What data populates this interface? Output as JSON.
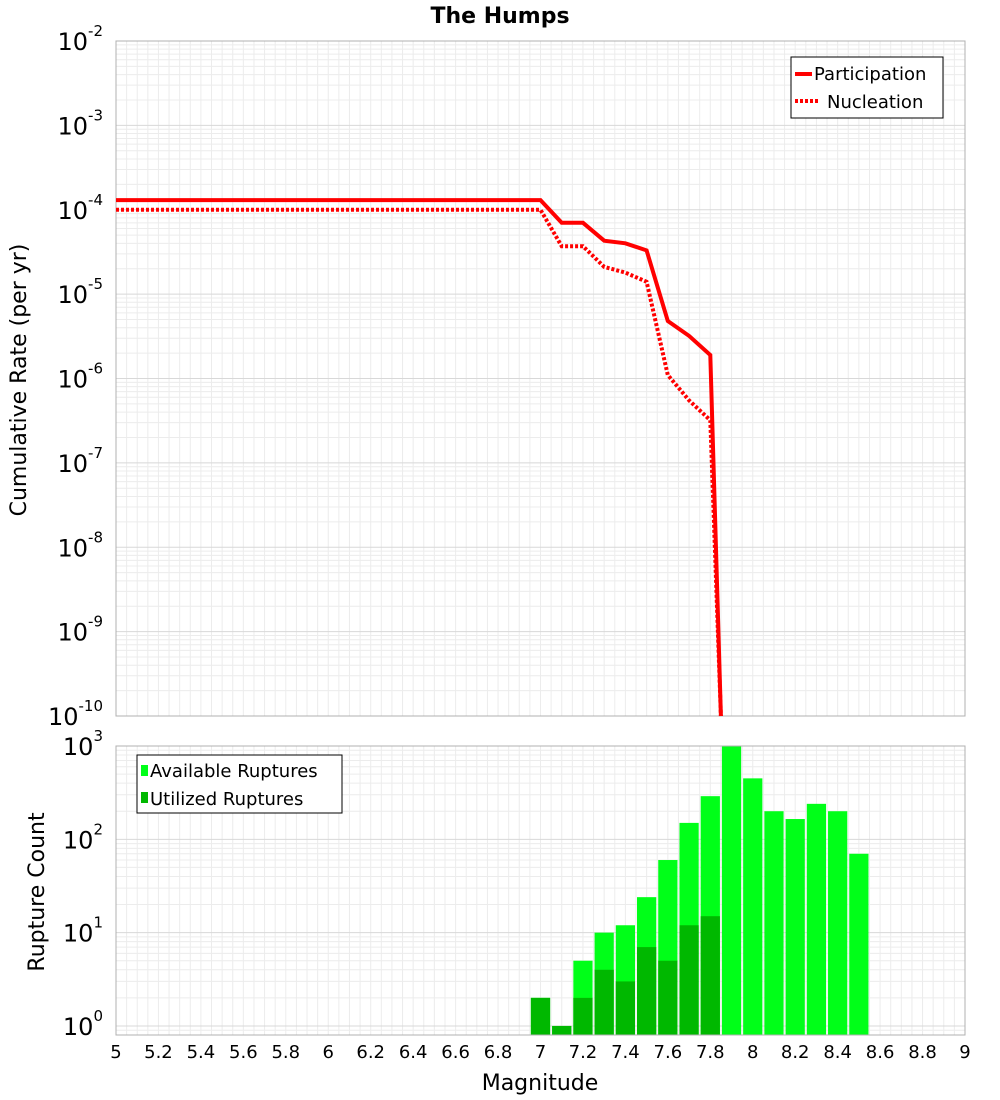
{
  "chart_data": [
    {
      "type": "line",
      "title": "The Humps",
      "xlabel": "",
      "ylabel": "Cumulative Rate (per yr)",
      "xlim": [
        5,
        9
      ],
      "ylim": [
        1e-10,
        0.01
      ],
      "y_scale": "log",
      "y_ticks_exp": [
        -10,
        -9,
        -8,
        -7,
        -6,
        -5,
        -4,
        -3,
        -2
      ],
      "grid": true,
      "legend_position": "top-right",
      "series": [
        {
          "name": "Participation",
          "color": "#ff0000",
          "style": "solid",
          "points": [
            [
              5.0,
              0.00013
            ],
            [
              7.0,
              0.00013
            ],
            [
              7.1,
              7e-05
            ],
            [
              7.2,
              7e-05
            ],
            [
              7.3,
              4.3e-05
            ],
            [
              7.4,
              4e-05
            ],
            [
              7.5,
              3.3e-05
            ],
            [
              7.6,
              4.8e-06
            ],
            [
              7.7,
              3.2e-06
            ],
            [
              7.8,
              1.9e-06
            ],
            [
              7.85,
              1e-10
            ]
          ]
        },
        {
          "name": "Nucleation",
          "color": "#ff0000",
          "style": "dotted",
          "points": [
            [
              5.0,
              0.0001
            ],
            [
              7.0,
              0.0001
            ],
            [
              7.1,
              3.7e-05
            ],
            [
              7.2,
              3.7e-05
            ],
            [
              7.3,
              2.1e-05
            ],
            [
              7.4,
              1.8e-05
            ],
            [
              7.5,
              1.4e-05
            ],
            [
              7.6,
              1.1e-06
            ],
            [
              7.7,
              5.5e-07
            ],
            [
              7.8,
              3.2e-07
            ],
            [
              7.85,
              1e-10
            ]
          ]
        }
      ]
    },
    {
      "type": "bar",
      "title": "",
      "xlabel": "Magnitude",
      "ylabel": "Rupture Count",
      "xlim": [
        5,
        9
      ],
      "ylim": [
        0.8,
        1000
      ],
      "y_scale": "log",
      "y_ticks_exp": [
        0,
        1,
        2,
        3
      ],
      "x_ticks": [
        "5",
        "5.2",
        "5.4",
        "5.6",
        "5.8",
        "6",
        "6.2",
        "6.4",
        "6.6",
        "6.8",
        "7",
        "7.2",
        "7.4",
        "7.6",
        "7.8",
        "8",
        "8.2",
        "8.4",
        "8.6",
        "8.8",
        "9"
      ],
      "grid": true,
      "legend_position": "top-left",
      "bar_width": 0.1,
      "series": [
        {
          "name": "Available Ruptures",
          "color": "#00ff18",
          "x": [
            7.0,
            7.1,
            7.2,
            7.3,
            7.4,
            7.5,
            7.6,
            7.7,
            7.8,
            7.9,
            8.0,
            8.1,
            8.2,
            8.3,
            8.4,
            8.5
          ],
          "values": [
            2,
            1,
            5,
            10,
            12,
            24,
            60,
            150,
            290,
            1000,
            450,
            200,
            165,
            240,
            200,
            70
          ]
        },
        {
          "name": "Utilized Ruptures",
          "color": "#00b800",
          "x": [
            7.0,
            7.1,
            7.2,
            7.3,
            7.4,
            7.5,
            7.6,
            7.7,
            7.8
          ],
          "values": [
            2,
            1,
            2,
            4,
            3,
            7,
            5,
            12,
            15
          ]
        }
      ]
    }
  ]
}
